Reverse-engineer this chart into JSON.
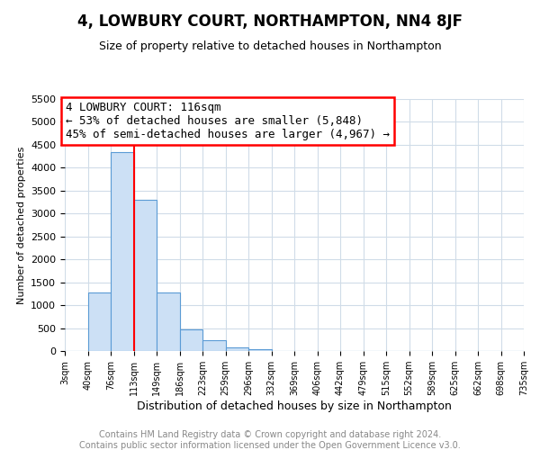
{
  "title": "4, LOWBURY COURT, NORTHAMPTON, NN4 8JF",
  "subtitle": "Size of property relative to detached houses in Northampton",
  "xlabel": "Distribution of detached houses by size in Northampton",
  "ylabel": "Number of detached properties",
  "footer_line1": "Contains HM Land Registry data © Crown copyright and database right 2024.",
  "footer_line2": "Contains public sector information licensed under the Open Government Licence v3.0.",
  "bin_labels": [
    "3sqm",
    "40sqm",
    "76sqm",
    "113sqm",
    "149sqm",
    "186sqm",
    "223sqm",
    "259sqm",
    "296sqm",
    "332sqm",
    "369sqm",
    "406sqm",
    "442sqm",
    "479sqm",
    "515sqm",
    "552sqm",
    "589sqm",
    "625sqm",
    "662sqm",
    "698sqm",
    "735sqm"
  ],
  "bar_values": [
    0,
    1270,
    4350,
    3300,
    1270,
    480,
    230,
    80,
    30,
    0,
    0,
    0,
    0,
    0,
    0,
    0,
    0,
    0,
    0,
    0
  ],
  "bar_color": "#cce0f5",
  "bar_edge_color": "#5b9bd5",
  "red_line_bin_index": 3,
  "ylim": [
    0,
    5500
  ],
  "yticks": [
    0,
    500,
    1000,
    1500,
    2000,
    2500,
    3000,
    3500,
    4000,
    4500,
    5000,
    5500
  ],
  "annotation_title": "4 LOWBURY COURT: 116sqm",
  "annotation_line1": "← 53% of detached houses are smaller (5,848)",
  "annotation_line2": "45% of semi-detached houses are larger (4,967) →",
  "background_color": "#ffffff",
  "grid_color": "#d0dce8",
  "title_fontsize": 12,
  "subtitle_fontsize": 9,
  "ylabel_fontsize": 8,
  "xlabel_fontsize": 9,
  "ytick_fontsize": 8,
  "xtick_fontsize": 7,
  "footer_fontsize": 7,
  "annotation_fontsize": 9
}
